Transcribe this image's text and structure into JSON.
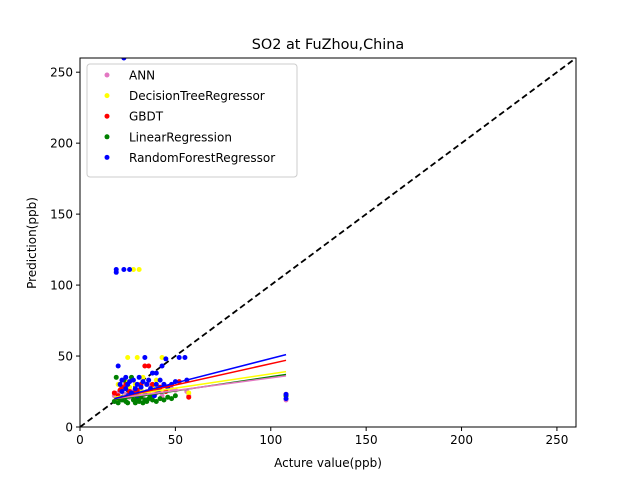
{
  "chart_data": {
    "type": "scatter",
    "title": "SO2 at FuZhou,China",
    "xlabel": "Acture value(ppb)",
    "ylabel": "Prediction(ppb)",
    "xlim": [
      0,
      260
    ],
    "ylim": [
      0,
      260
    ],
    "xticks": [
      0,
      50,
      100,
      150,
      200,
      250
    ],
    "yticks": [
      0,
      50,
      100,
      150,
      200,
      250
    ],
    "legend_position": "top-left",
    "grid": false,
    "reference_line": {
      "style": "dashed",
      "color": "#000000",
      "from": [
        0,
        0
      ],
      "to": [
        260,
        260
      ]
    },
    "series": [
      {
        "name": "ANN",
        "color": "#e377c2",
        "points": [
          [
            18,
            22
          ],
          [
            19,
            18
          ],
          [
            20,
            24
          ],
          [
            21,
            20
          ],
          [
            22,
            26
          ],
          [
            23,
            19
          ],
          [
            24,
            23
          ],
          [
            25,
            28
          ],
          [
            26,
            21
          ],
          [
            27,
            25
          ],
          [
            28,
            22
          ],
          [
            29,
            27
          ],
          [
            30,
            20
          ],
          [
            31,
            24
          ],
          [
            32,
            26
          ],
          [
            33,
            21
          ],
          [
            35,
            25
          ],
          [
            36,
            30
          ],
          [
            37,
            22
          ],
          [
            38,
            26
          ],
          [
            40,
            24
          ],
          [
            42,
            28
          ],
          [
            43,
            22
          ],
          [
            45,
            25
          ],
          [
            48,
            27
          ],
          [
            50,
            26
          ],
          [
            56,
            25
          ],
          [
            57,
            22
          ],
          [
            108,
            19
          ],
          [
            108,
            22
          ]
        ],
        "fit": [
          [
            18,
            20
          ],
          [
            108,
            36
          ]
        ]
      },
      {
        "name": "DecisionTreeRegressor",
        "color": "#ffff00",
        "points": [
          [
            19,
            20
          ],
          [
            20,
            30
          ],
          [
            22,
            25
          ],
          [
            24,
            32
          ],
          [
            25,
            49
          ],
          [
            26,
            28
          ],
          [
            28,
            111
          ],
          [
            29,
            30
          ],
          [
            30,
            49
          ],
          [
            31,
            111
          ],
          [
            32,
            26
          ],
          [
            33,
            35
          ],
          [
            35,
            30
          ],
          [
            36,
            24
          ],
          [
            38,
            28
          ],
          [
            40,
            33
          ],
          [
            42,
            25
          ],
          [
            43,
            49
          ],
          [
            44,
            30
          ],
          [
            46,
            27
          ],
          [
            57,
            24
          ],
          [
            108,
            22
          ]
        ],
        "fit": [
          [
            18,
            21
          ],
          [
            108,
            39
          ]
        ]
      },
      {
        "name": "GBDT",
        "color": "#ff0000",
        "points": [
          [
            18,
            24
          ],
          [
            20,
            22
          ],
          [
            21,
            26
          ],
          [
            22,
            28
          ],
          [
            24,
            30
          ],
          [
            26,
            25
          ],
          [
            28,
            24
          ],
          [
            30,
            26
          ],
          [
            32,
            30
          ],
          [
            34,
            43
          ],
          [
            36,
            43
          ],
          [
            38,
            30
          ],
          [
            40,
            26
          ],
          [
            42,
            28
          ],
          [
            45,
            25
          ],
          [
            52,
            32
          ],
          [
            57,
            21
          ],
          [
            108,
            23
          ]
        ],
        "fit": [
          [
            18,
            20
          ],
          [
            108,
            47
          ]
        ]
      },
      {
        "name": "LinearRegression",
        "color": "#008000",
        "points": [
          [
            18,
            18
          ],
          [
            19,
            35
          ],
          [
            20,
            17
          ],
          [
            21,
            20
          ],
          [
            22,
            19
          ],
          [
            23,
            33
          ],
          [
            24,
            18
          ],
          [
            25,
            17
          ],
          [
            26,
            22
          ],
          [
            27,
            35
          ],
          [
            28,
            19
          ],
          [
            29,
            17
          ],
          [
            30,
            20
          ],
          [
            31,
            18
          ],
          [
            32,
            21
          ],
          [
            33,
            17
          ],
          [
            34,
            19
          ],
          [
            35,
            18
          ],
          [
            36,
            20
          ],
          [
            37,
            22
          ],
          [
            38,
            19
          ],
          [
            40,
            18
          ],
          [
            42,
            20
          ],
          [
            44,
            19
          ],
          [
            46,
            21
          ],
          [
            48,
            20
          ],
          [
            50,
            22
          ],
          [
            108,
            22
          ]
        ],
        "fit": [
          [
            18,
            19
          ],
          [
            108,
            37
          ]
        ]
      },
      {
        "name": "RandomForestRegressor",
        "color": "#0000ff",
        "points": [
          [
            19,
            111
          ],
          [
            19,
            109
          ],
          [
            20,
            43
          ],
          [
            21,
            30
          ],
          [
            22,
            33
          ],
          [
            22,
            25
          ],
          [
            23,
            111
          ],
          [
            23,
            260
          ],
          [
            24,
            27
          ],
          [
            24,
            35
          ],
          [
            25,
            22
          ],
          [
            25,
            30
          ],
          [
            26,
            111
          ],
          [
            26,
            32
          ],
          [
            27,
            24
          ],
          [
            28,
            33
          ],
          [
            29,
            27
          ],
          [
            30,
            30
          ],
          [
            30,
            22
          ],
          [
            31,
            35
          ],
          [
            32,
            28
          ],
          [
            33,
            32
          ],
          [
            34,
            49
          ],
          [
            34,
            24
          ],
          [
            35,
            30
          ],
          [
            36,
            33
          ],
          [
            37,
            27
          ],
          [
            38,
            38
          ],
          [
            39,
            22
          ],
          [
            40,
            38
          ],
          [
            40,
            30
          ],
          [
            41,
            25
          ],
          [
            42,
            33
          ],
          [
            43,
            43
          ],
          [
            44,
            30
          ],
          [
            45,
            48
          ],
          [
            46,
            28
          ],
          [
            48,
            30
          ],
          [
            50,
            32
          ],
          [
            52,
            49
          ],
          [
            55,
            49
          ],
          [
            56,
            33
          ],
          [
            108,
            20
          ],
          [
            108,
            23
          ]
        ],
        "fit": [
          [
            18,
            20
          ],
          [
            108,
            51
          ]
        ]
      }
    ]
  }
}
